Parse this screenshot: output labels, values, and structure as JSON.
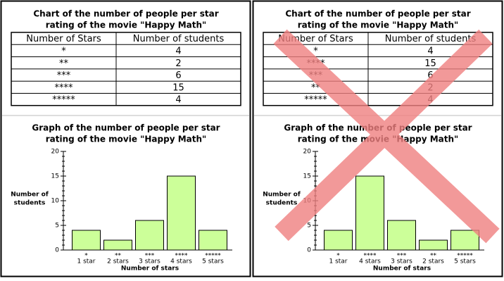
{
  "tables": [
    {
      "title": [
        "Chart of the number of people per star",
        "rating of the movie \"Happy Math\""
      ],
      "columns": [
        "Number of Stars",
        "Number of students"
      ],
      "rows": [
        [
          "*",
          4
        ],
        [
          "**",
          2
        ],
        [
          "***",
          6
        ],
        [
          "****",
          15
        ],
        [
          "*****",
          4
        ]
      ]
    },
    {
      "title": [
        "Chart of the number of people per star",
        "rating of the movie \"Happy Math\""
      ],
      "columns": [
        "Number of Stars",
        "Number of students"
      ],
      "rows": [
        [
          "*",
          4
        ],
        [
          "****",
          15
        ],
        [
          "***",
          6
        ],
        [
          "**",
          2
        ],
        [
          "*****",
          4
        ]
      ]
    }
  ],
  "chart_data": [
    {
      "type": "bar",
      "title": [
        "Graph of the number of people per star",
        "rating of the movie \"Happy Math\""
      ],
      "categories": [
        "*",
        "**",
        "***",
        "****",
        "*****"
      ],
      "category_sublabels": [
        "1 star",
        "2 stars",
        "3 stars",
        "4 stars",
        "5 stars"
      ],
      "values": [
        4,
        2,
        6,
        15,
        4
      ],
      "color": "#ccff99",
      "ylabel": [
        "Number of",
        "students"
      ],
      "xlabel": "Number of stars",
      "ylim": [
        0,
        20
      ],
      "yticks": [
        0,
        5,
        10,
        15,
        20
      ],
      "yminorticks": [
        1,
        2,
        3,
        4,
        6,
        7,
        8,
        9,
        11,
        12,
        13,
        14,
        16,
        17,
        18,
        19
      ]
    },
    {
      "type": "bar",
      "title": [
        "Graph of the number of people per star",
        "rating of the movie \"Happy Math\""
      ],
      "categories": [
        "*",
        "****",
        "***",
        "**",
        "*****"
      ],
      "category_sublabels": [
        "1 star",
        "4 stars",
        "3 stars",
        "2 stars",
        "5 stars"
      ],
      "values": [
        4,
        15,
        6,
        2,
        4
      ],
      "color": "#ccff99",
      "ylabel": [
        "Number of",
        "students"
      ],
      "xlabel": "Number of stars",
      "ylim": [
        0,
        20
      ],
      "yticks": [
        0,
        5,
        10,
        15,
        20
      ],
      "yminorticks": [
        1,
        2,
        3,
        4,
        6,
        7,
        8,
        9,
        11,
        12,
        13,
        14,
        16,
        17,
        18,
        19
      ]
    }
  ]
}
